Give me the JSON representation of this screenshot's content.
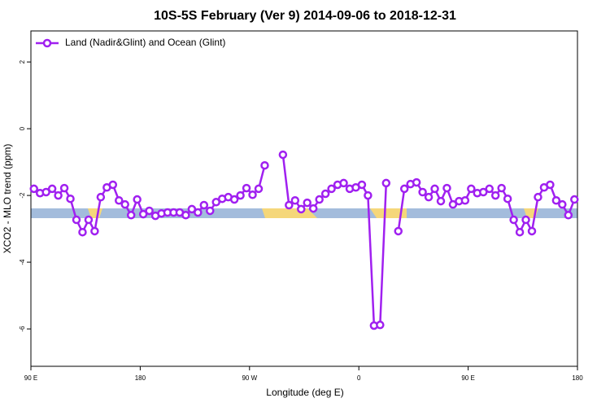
{
  "chart_data": {
    "type": "line",
    "title": "10S-5S February (Ver 9)   2014-09-06 to 2018-12-31",
    "x_label": "Longitude (deg E)",
    "y_label": "XCO2 - MLO trend (ppm)",
    "x": [
      92.5,
      97.5,
      102.5,
      107.5,
      112.5,
      117.5,
      122.5,
      127.5,
      132.5,
      137.5,
      142.5,
      147.5,
      152.5,
      157.5,
      162.5,
      167.5,
      172.5,
      177.5,
      182.5,
      187.5,
      192.5,
      197.5,
      202.5,
      207.5,
      212.5,
      217.5,
      222.5,
      227.5,
      232.5,
      237.5,
      242.5,
      247.5,
      252.5,
      257.5,
      262.5,
      267.5,
      272.5,
      277.5,
      282.5,
      287.5,
      292.5,
      297.5,
      302.5,
      307.5,
      312.5,
      317.5,
      322.5,
      327.5,
      332.5,
      337.5,
      342.5,
      347.5,
      352.5,
      357.5,
      362.5,
      367.5,
      372.5,
      377.5,
      382.5,
      387.5,
      392.5,
      397.5,
      402.5,
      407.5,
      412.5,
      417.5,
      422.5,
      427.5,
      432.5,
      437.5,
      442.5,
      447.5,
      452.5,
      457.5,
      462.5,
      467.5,
      472.5,
      477.5,
      482.5,
      487.5,
      492.5,
      497.5,
      502.5,
      507.5,
      512.5,
      517.5,
      522.5,
      527.5,
      532.5,
      537.5
    ],
    "series": [
      {
        "name": "Land (Nadir&Glint) and Ocean (Glint)",
        "color": "#a020f0",
        "values": [
          -1.8,
          -1.93,
          -1.9,
          -1.8,
          -2.0,
          -1.78,
          -2.1,
          -2.73,
          -3.1,
          -2.73,
          -3.07,
          -2.05,
          -1.76,
          -1.68,
          -2.15,
          -2.27,
          -2.59,
          -2.12,
          -2.56,
          -2.46,
          -2.61,
          -2.54,
          -2.51,
          -2.51,
          -2.51,
          -2.59,
          -2.41,
          -2.51,
          -2.29,
          -2.46,
          -2.2,
          -2.1,
          -2.05,
          -2.12,
          -2.0,
          -1.78,
          -1.98,
          -1.8,
          -1.1,
          null,
          null,
          -0.78,
          -2.29,
          -2.15,
          -2.41,
          -2.22,
          -2.39,
          -2.12,
          -1.95,
          -1.8,
          -1.68,
          -1.63,
          -1.8,
          -1.76,
          -1.68,
          -2.0,
          -5.9,
          -5.88,
          -1.63,
          null,
          -3.07,
          -1.8,
          -1.66,
          -1.61,
          -1.9,
          -2.05,
          -1.8,
          -2.17,
          -1.78,
          -2.27,
          -2.17,
          -2.15,
          -1.8,
          -1.93,
          -1.9,
          -1.8,
          -2.0,
          -1.78,
          -2.1,
          -2.73,
          -3.1,
          -2.73,
          -3.07,
          -2.05,
          -1.76,
          -1.68,
          -2.15,
          -2.27,
          -2.59,
          -2.12
        ]
      }
    ],
    "xlim": [
      90,
      540
    ],
    "xticks": [
      {
        "value": 90,
        "label": "90 E"
      },
      180,
      {
        "value": 270,
        "label": "90 W"
      },
      {
        "value": 360,
        "label": "0"
      },
      {
        "value": 450,
        "label": "90 E"
      },
      {
        "value": 540,
        "label": "180"
      }
    ],
    "ylim": [
      -7.12,
      2.93
    ],
    "yticks": [
      2,
      0,
      -2,
      -4,
      -6
    ],
    "legend": "top-left"
  }
}
